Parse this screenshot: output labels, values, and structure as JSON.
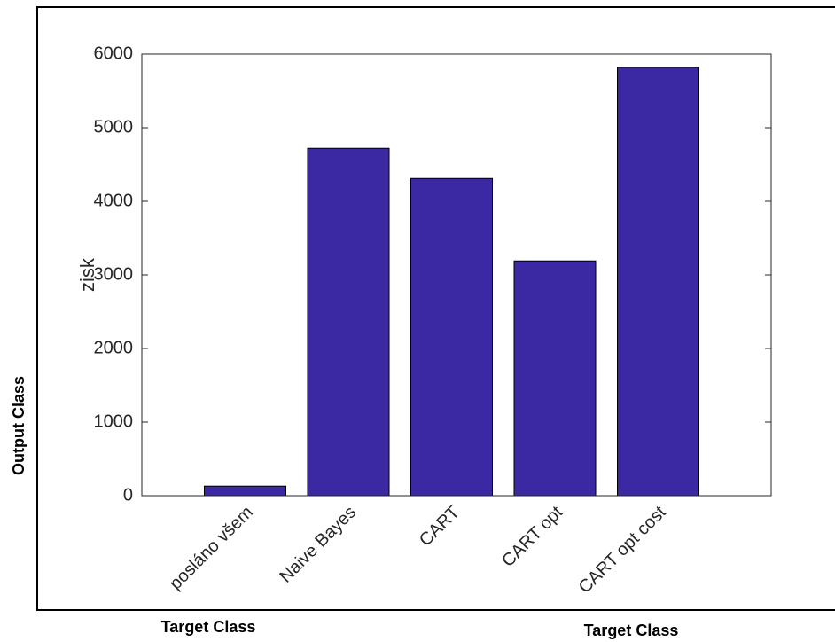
{
  "chart_data": {
    "type": "bar",
    "y_label": "zisk",
    "categories": [
      "posláno všem",
      "Naive Bayes",
      "CART",
      "CART opt",
      "CART opt cost"
    ],
    "values": [
      130,
      4720,
      4310,
      3190,
      5820
    ],
    "color": "#3b28a3",
    "ylim": [
      0,
      6000
    ],
    "yticks": [
      0,
      1000,
      2000,
      3000,
      4000,
      5000,
      6000
    ],
    "grid": false
  },
  "background": {
    "y_label": "Output Class",
    "x_labels": [
      "Target Class",
      "Target Class"
    ]
  }
}
